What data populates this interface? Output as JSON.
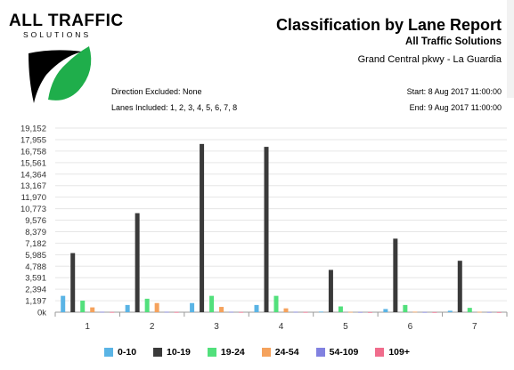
{
  "header": {
    "logo_name": "ALL TRAFFIC",
    "logo_sub": "SOLUTIONS",
    "logo_icon": "leaf-logo-icon",
    "title": "Classification by Lane Report",
    "company": "All Traffic Solutions",
    "location": "Grand Central pkwy - La Guardia"
  },
  "meta": {
    "direction_excluded": "Direction Excluded: None",
    "lanes_included": "Lanes Included: 1, 2, 3, 4, 5, 6, 7, 8",
    "start": "Start: 8 Aug 2017 11:00:00",
    "end": "End: 9 Aug 2017 11:00:00"
  },
  "colors": {
    "logo_green": "#1fae4b",
    "series": [
      "#5ab4e5",
      "#3a3a3a",
      "#52e07c",
      "#f5a25c",
      "#8181e0",
      "#f06c8c"
    ]
  },
  "chart_data": {
    "type": "bar",
    "title": "",
    "xlabel": "",
    "ylabel": "",
    "categories": [
      "1",
      "2",
      "3",
      "4",
      "5",
      "6",
      "7"
    ],
    "y_ticks": [
      "0k",
      "1,197",
      "2,394",
      "3,591",
      "4,788",
      "5,985",
      "7,182",
      "8,379",
      "9,576",
      "10,773",
      "11,970",
      "13,167",
      "14,364",
      "15,561",
      "16,758",
      "17,955",
      "19,152"
    ],
    "ylim": [
      0,
      19152
    ],
    "grid": true,
    "legend_position": "bottom",
    "series": [
      {
        "name": "0-10",
        "values": [
          1700,
          750,
          950,
          750,
          60,
          330,
          150
        ]
      },
      {
        "name": "10-19",
        "values": [
          6150,
          10300,
          17500,
          17200,
          4400,
          7650,
          5350
        ]
      },
      {
        "name": "19-24",
        "values": [
          1200,
          1400,
          1700,
          1700,
          600,
          750,
          450
        ]
      },
      {
        "name": "24-54",
        "values": [
          500,
          950,
          550,
          400,
          30,
          50,
          40
        ]
      },
      {
        "name": "54-109",
        "values": [
          40,
          40,
          40,
          40,
          20,
          20,
          20
        ]
      },
      {
        "name": "109+",
        "values": [
          20,
          20,
          20,
          20,
          10,
          10,
          10
        ]
      }
    ]
  }
}
